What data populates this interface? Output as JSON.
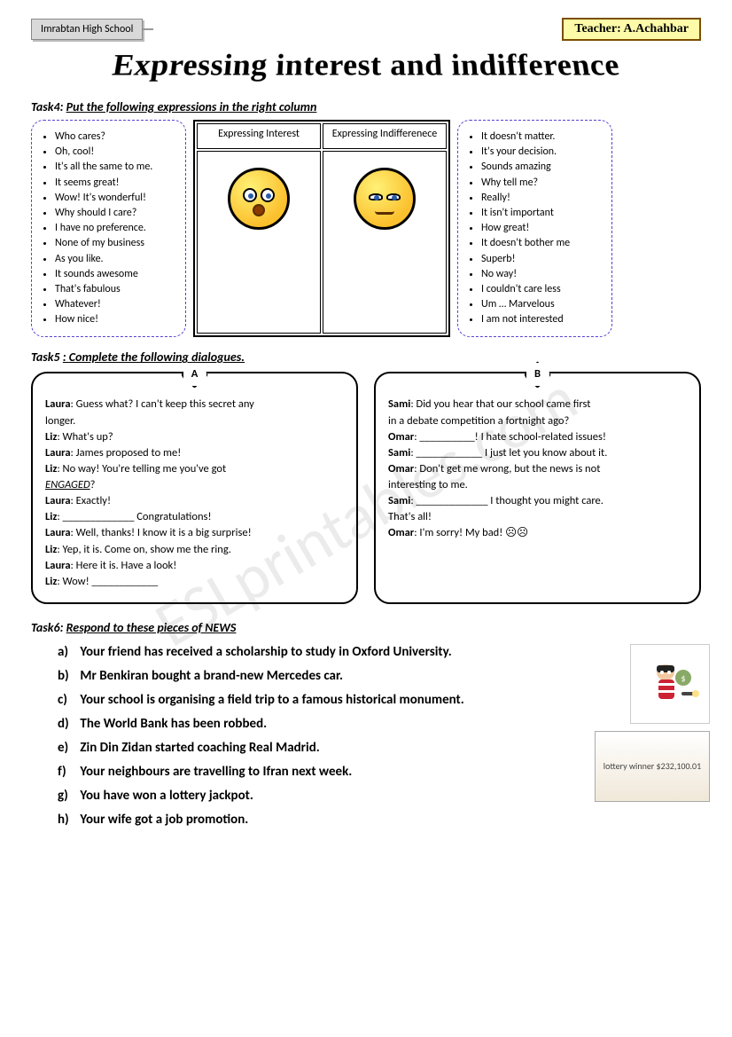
{
  "header": {
    "school": "Imrabtan High School",
    "teacher_label": "Teacher:",
    "teacher_name": "A.Achahbar"
  },
  "title": "Expressing interest and indifference",
  "watermark": "ESLprintables.com",
  "task4": {
    "label": "Task4:",
    "instruction": "Put the following expressions in the right column",
    "left_list": [
      "Who cares?",
      "Oh, cool!",
      "It's all the same to me.",
      "It seems great!",
      "Wow! It's wonderful!",
      "Why should I care?",
      "I have no preference.",
      "None of my business",
      "As you like.",
      "It sounds awesome",
      "That's fabulous",
      "Whatever!",
      "How nice!"
    ],
    "right_list": [
      "It doesn't matter.",
      "It's your decision.",
      "Sounds amazing",
      "Why tell me?",
      "Really!",
      "It isn't important",
      "How great!",
      "It doesn't bother me",
      "Superb!",
      "No way!",
      "I couldn't care less",
      "Um … Marvelous",
      "I am not interested"
    ],
    "col1": "Expressing Interest",
    "col2": "Expressing Indifferenece"
  },
  "task5": {
    "label": "Task5",
    "instruction": ": Complete the following dialogues.",
    "A": {
      "badge": "A",
      "lines": [
        {
          "s": "Laura",
          "t": ": Guess what? I can't keep this secret any"
        },
        {
          "s": "",
          "t": "          longer."
        },
        {
          "s": "Liz",
          "t": ": What's up?"
        },
        {
          "s": "Laura",
          "t": ": James proposed to me!"
        },
        {
          "s": "Liz",
          "t": ": No way! You're telling me you've got"
        },
        {
          "s": "",
          "t": "ENGAGED",
          "eng": true,
          "tail": "?"
        },
        {
          "s": "Laura",
          "t": ": Exactly!"
        },
        {
          "s": "Liz",
          "t": ": _____________ Congratulations!"
        },
        {
          "s": "Laura",
          "t": ": Well, thanks! I know it is a big surprise!"
        },
        {
          "s": "Liz",
          "t": ": Yep, it is. Come on, show me the ring."
        },
        {
          "s": "Laura",
          "t": ": Here it is. Have a look!"
        },
        {
          "s": "Liz",
          "t": ": Wow! ____________"
        }
      ]
    },
    "B": {
      "badge": "B",
      "lines": [
        {
          "s": "Sami",
          "t": ": Did you hear that our school came first"
        },
        {
          "s": "",
          "t": "          in a debate competition a fortnight ago?"
        },
        {
          "s": "Omar",
          "t": ": __________! I hate school-related issues!"
        },
        {
          "s": "Sami",
          "t": ": ____________ I just let you know about it."
        },
        {
          "s": "Omar",
          "t": ": Don't get me wrong, but the news is not"
        },
        {
          "s": "",
          "t": "          interesting to me."
        },
        {
          "s": "",
          "t": " "
        },
        {
          "s": "Sami",
          "t": ": _____________ I thought you might care."
        },
        {
          "s": "",
          "t": "          That's all!"
        },
        {
          "s": "",
          "t": " "
        },
        {
          "s": "Omar",
          "t": ": I'm sorry! My bad! ☹☹"
        }
      ]
    }
  },
  "task6": {
    "label": "Task6:",
    "instruction": "Respond to these pieces of NEWS",
    "items": [
      {
        "l": "a)",
        "t": "Your friend has received a scholarship to study in Oxford University."
      },
      {
        "l": "b)",
        "t": "Mr Benkiran bought a brand-new Mercedes car."
      },
      {
        "l": "c)",
        "t": "Your school is organising a field trip  to a famous historical monument."
      },
      {
        "l": "d)",
        "t": "The World Bank has been robbed."
      },
      {
        "l": "e)",
        "t": "Zin Din Zidan started coaching Real Madrid."
      },
      {
        "l": "f)",
        "t": "Your neighbours are travelling to Ifran next week."
      },
      {
        "l": "g)",
        "t": "You have won a lottery jackpot."
      },
      {
        "l": "h)",
        "t": "Your wife got a job promotion."
      }
    ],
    "thief_alt": "thief",
    "lottery_alt": "lottery winner $232,100.01"
  }
}
